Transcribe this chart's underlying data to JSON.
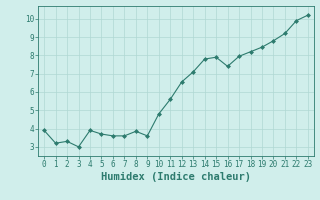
{
  "x": [
    0,
    1,
    2,
    3,
    4,
    5,
    6,
    7,
    8,
    9,
    10,
    11,
    12,
    13,
    14,
    15,
    16,
    17,
    18,
    19,
    20,
    21,
    22,
    23
  ],
  "y": [
    3.9,
    3.2,
    3.3,
    3.0,
    3.9,
    3.7,
    3.6,
    3.6,
    3.85,
    3.6,
    4.8,
    5.6,
    6.55,
    7.1,
    7.8,
    7.9,
    7.4,
    7.95,
    8.2,
    8.45,
    8.8,
    9.2,
    9.9,
    10.2
  ],
  "line_color": "#2d7b6e",
  "marker": "D",
  "marker_size": 2.0,
  "bg_color": "#d0eeeb",
  "grid_color": "#b0d8d4",
  "xlabel": "Humidex (Indice chaleur)",
  "xlim": [
    -0.5,
    23.5
  ],
  "ylim": [
    2.5,
    10.7
  ],
  "yticks": [
    3,
    4,
    5,
    6,
    7,
    8,
    9,
    10
  ],
  "xticks": [
    0,
    1,
    2,
    3,
    4,
    5,
    6,
    7,
    8,
    9,
    10,
    11,
    12,
    13,
    14,
    15,
    16,
    17,
    18,
    19,
    20,
    21,
    22,
    23
  ],
  "tick_fontsize": 5.5,
  "label_fontsize": 7.5,
  "font_family": "monospace"
}
